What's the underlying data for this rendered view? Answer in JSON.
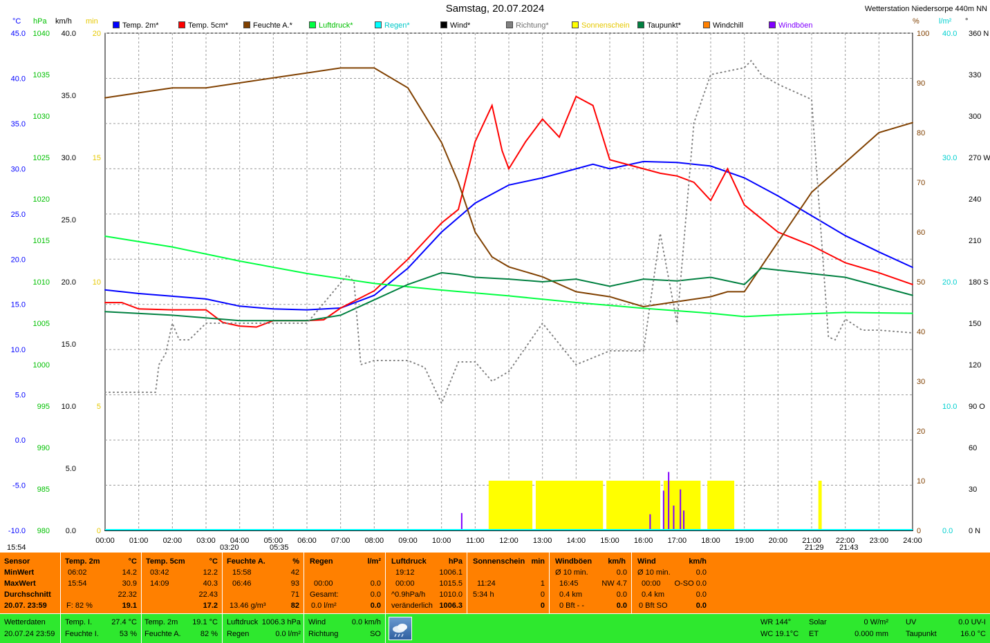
{
  "title": "Samstag, 20.07.2024",
  "station": "Wetterstation Niedersorpe 440m NN",
  "legend": [
    {
      "label": "Temp. 2m*",
      "color": "#0000ff"
    },
    {
      "label": "Temp. 5cm*",
      "color": "#ff0000"
    },
    {
      "label": "Feuchte A.*",
      "color": "#804000"
    },
    {
      "label": "Luftdruck*",
      "color": "#00ff40"
    },
    {
      "label": "Regen*",
      "color": "#00ffff"
    },
    {
      "label": "Wind*",
      "color": "#000000"
    },
    {
      "label": "Richtung*",
      "color": "#808080"
    },
    {
      "label": "Sonnenschein",
      "color": "#ffff00"
    },
    {
      "label": "Taupunkt*",
      "color": "#008040"
    },
    {
      "label": "Windchill",
      "color": "#ff8000"
    },
    {
      "label": "Windböen",
      "color": "#8000ff"
    }
  ],
  "units": {
    "c": "°C",
    "hpa": "hPa",
    "kmh": "km/h",
    "min": "min",
    "pct": "%",
    "lm2": "l/m²",
    "deg": "°"
  },
  "axes": {
    "temp_c": [
      "45.0",
      "40.0",
      "35.0",
      "30.0",
      "25.0",
      "20.0",
      "15.0",
      "10.0",
      "5.0",
      "0.0",
      "-5.0",
      "-10.0"
    ],
    "pressure_hpa": [
      "1040",
      "1035",
      "1030",
      "1025",
      "1020",
      "1015",
      "1010",
      "1005",
      "1000",
      "995",
      "990",
      "985",
      "980"
    ],
    "wind_kmh": [
      "40.0",
      "35.0",
      "30.0",
      "25.0",
      "20.0",
      "15.0",
      "10.0",
      "5.0",
      "0.0"
    ],
    "sun_min": [
      "20",
      "15",
      "10",
      "5",
      "0"
    ],
    "humidity_pct": [
      "100",
      "90",
      "80",
      "70",
      "60",
      "50",
      "40",
      "30",
      "20",
      "10",
      "0"
    ],
    "rain_lm2": [
      "40.0",
      "30.0",
      "20.0",
      "10.0",
      "0.0"
    ],
    "direction_deg": [
      "360 N",
      "330",
      "300",
      "270 W",
      "240",
      "210",
      "180 S",
      "150",
      "120",
      "90 O",
      "60",
      "30",
      "0 N"
    ],
    "x_ticks": [
      "00:00",
      "01:00",
      "02:00",
      "03:00",
      "04:00",
      "05:00",
      "06:00",
      "07:00",
      "08:00",
      "09:00",
      "10:00",
      "11:00",
      "12:00",
      "13:00",
      "14:00",
      "15:00",
      "16:00",
      "17:00",
      "18:00",
      "19:00",
      "20:00",
      "21:00",
      "22:00",
      "23:00",
      "24:00"
    ]
  },
  "sun_events": [
    {
      "label": "15:54"
    },
    {
      "label": "03:20"
    },
    {
      "label": "05:35"
    },
    {
      "label": "21:29"
    },
    {
      "label": "21:43"
    }
  ],
  "chart_data": {
    "type": "line",
    "x_range": [
      0,
      24
    ],
    "series": [
      {
        "name": "Temp. 2m*",
        "unit": "°C",
        "color": "#0000ff",
        "points": [
          [
            0,
            16.6
          ],
          [
            1,
            16.2
          ],
          [
            2,
            15.9
          ],
          [
            3,
            15.6
          ],
          [
            4,
            14.8
          ],
          [
            5,
            14.5
          ],
          [
            6,
            14.4
          ],
          [
            7,
            14.6
          ],
          [
            8,
            16.0
          ],
          [
            9,
            19.0
          ],
          [
            10,
            23.0
          ],
          [
            11,
            26.2
          ],
          [
            12,
            28.2
          ],
          [
            13,
            29.0
          ],
          [
            14,
            30.0
          ],
          [
            14.5,
            30.5
          ],
          [
            15,
            30.0
          ],
          [
            16,
            30.8
          ],
          [
            17,
            30.7
          ],
          [
            18,
            30.3
          ],
          [
            19,
            29.0
          ],
          [
            20,
            27.0
          ],
          [
            21,
            24.8
          ],
          [
            22,
            22.6
          ],
          [
            23,
            20.8
          ],
          [
            24,
            19.1
          ]
        ]
      },
      {
        "name": "Temp. 5cm*",
        "unit": "°C",
        "color": "#ff0000",
        "points": [
          [
            0,
            15.2
          ],
          [
            0.5,
            15.2
          ],
          [
            1,
            14.5
          ],
          [
            2,
            14.4
          ],
          [
            3,
            14.4
          ],
          [
            3.5,
            13.0
          ],
          [
            4,
            12.6
          ],
          [
            4.5,
            12.5
          ],
          [
            5,
            13.2
          ],
          [
            6,
            13.2
          ],
          [
            6.5,
            13.3
          ],
          [
            7,
            14.6
          ],
          [
            8,
            16.5
          ],
          [
            9,
            20.0
          ],
          [
            10,
            24.0
          ],
          [
            10.5,
            25.5
          ],
          [
            11,
            33.0
          ],
          [
            11.5,
            37.0
          ],
          [
            11.8,
            32.0
          ],
          [
            12,
            30.0
          ],
          [
            12.5,
            33.0
          ],
          [
            13,
            35.5
          ],
          [
            13.5,
            33.5
          ],
          [
            14,
            38.0
          ],
          [
            14.5,
            37.0
          ],
          [
            15,
            31.0
          ],
          [
            16,
            30.0
          ],
          [
            16.5,
            29.5
          ],
          [
            17,
            29.2
          ],
          [
            17.5,
            28.5
          ],
          [
            18,
            26.5
          ],
          [
            18.5,
            30.0
          ],
          [
            19,
            26.0
          ],
          [
            20,
            23.0
          ],
          [
            21,
            21.5
          ],
          [
            22,
            19.6
          ],
          [
            23,
            18.5
          ],
          [
            24,
            17.2
          ]
        ]
      },
      {
        "name": "Feuchte A.*",
        "unit": "%",
        "color": "#804000",
        "points": [
          [
            0,
            87
          ],
          [
            1,
            88
          ],
          [
            2,
            89
          ],
          [
            3,
            89
          ],
          [
            4,
            90
          ],
          [
            5,
            91
          ],
          [
            6,
            92
          ],
          [
            7,
            93
          ],
          [
            8,
            93
          ],
          [
            9,
            89
          ],
          [
            10,
            78
          ],
          [
            10.5,
            70
          ],
          [
            11,
            60
          ],
          [
            11.5,
            55
          ],
          [
            12,
            53
          ],
          [
            13,
            51
          ],
          [
            14,
            48
          ],
          [
            15,
            47
          ],
          [
            16,
            45
          ],
          [
            17,
            46
          ],
          [
            18,
            47
          ],
          [
            18.5,
            48
          ],
          [
            19,
            48
          ],
          [
            20,
            58
          ],
          [
            21,
            68
          ],
          [
            22,
            74
          ],
          [
            23,
            80
          ],
          [
            24,
            82
          ]
        ]
      },
      {
        "name": "Luftdruck*",
        "unit": "hPa",
        "color": "#00ff40",
        "points": [
          [
            0,
            1015.5
          ],
          [
            2,
            1014.2
          ],
          [
            4,
            1012.5
          ],
          [
            6,
            1011.0
          ],
          [
            8,
            1009.8
          ],
          [
            10,
            1009.0
          ],
          [
            12,
            1008.3
          ],
          [
            14,
            1007.5
          ],
          [
            16,
            1006.8
          ],
          [
            18,
            1006.2
          ],
          [
            19,
            1005.8
          ],
          [
            20,
            1006.0
          ],
          [
            22,
            1006.3
          ],
          [
            24,
            1006.2
          ]
        ]
      },
      {
        "name": "Taupunkt*",
        "unit": "°C",
        "color": "#008040",
        "points": [
          [
            0,
            14.2
          ],
          [
            2,
            13.8
          ],
          [
            4,
            13.2
          ],
          [
            6,
            13.2
          ],
          [
            7,
            13.8
          ],
          [
            8,
            15.5
          ],
          [
            9,
            17.2
          ],
          [
            10,
            18.5
          ],
          [
            10.5,
            18.3
          ],
          [
            11,
            18.0
          ],
          [
            12,
            17.8
          ],
          [
            13,
            17.5
          ],
          [
            14,
            17.8
          ],
          [
            15,
            17.0
          ],
          [
            16,
            17.8
          ],
          [
            17,
            17.6
          ],
          [
            18,
            18.0
          ],
          [
            19,
            17.2
          ],
          [
            19.5,
            19.0
          ],
          [
            20,
            18.8
          ],
          [
            22,
            18.0
          ],
          [
            24,
            16.0
          ]
        ]
      },
      {
        "name": "Wind*",
        "unit": "km/h",
        "color": "#000000",
        "points": [
          [
            0,
            0.0
          ],
          [
            24,
            0.0
          ]
        ]
      },
      {
        "name": "Richtung*",
        "unit": "°",
        "color": "#808080",
        "points": [
          [
            0,
            100
          ],
          [
            1.5,
            100
          ],
          [
            1.6,
            120
          ],
          [
            1.8,
            128
          ],
          [
            2,
            150
          ],
          [
            2.2,
            138
          ],
          [
            2.5,
            138
          ],
          [
            3,
            150
          ],
          [
            6,
            150
          ],
          [
            7.2,
            185
          ],
          [
            7.4,
            180
          ],
          [
            7.6,
            120
          ],
          [
            8,
            123
          ],
          [
            9,
            123
          ],
          [
            9.5,
            118
          ],
          [
            10,
            92
          ],
          [
            10.5,
            122
          ],
          [
            11,
            122
          ],
          [
            11.5,
            108
          ],
          [
            12,
            115
          ],
          [
            13,
            150
          ],
          [
            14,
            120
          ],
          [
            15,
            130
          ],
          [
            16,
            130
          ],
          [
            16.5,
            215
          ],
          [
            17,
            150
          ],
          [
            17.5,
            295
          ],
          [
            18,
            330
          ],
          [
            19,
            335
          ],
          [
            19.2,
            340
          ],
          [
            19.5,
            330
          ],
          [
            20,
            323
          ],
          [
            21,
            312
          ],
          [
            21.5,
            140
          ],
          [
            21.7,
            138
          ],
          [
            22,
            153
          ],
          [
            22.5,
            145
          ],
          [
            23,
            145
          ],
          [
            24,
            143
          ]
        ]
      }
    ],
    "bars": [
      {
        "name": "Sonnenschein",
        "unit": "min",
        "color": "#ffff00",
        "intervals": [
          [
            11.4,
            12.7
          ],
          [
            12.8,
            14.8
          ],
          [
            14.9,
            16.5
          ],
          [
            16.6,
            17.7
          ],
          [
            17.9,
            18.7
          ],
          [
            21.2,
            21.3
          ]
        ],
        "value": 1.0
      },
      {
        "name": "Windböen",
        "unit": "km/h",
        "color": "#8000ff",
        "spikes": [
          [
            10.6,
            1.4
          ],
          [
            16.2,
            1.3
          ],
          [
            16.6,
            3.2
          ],
          [
            16.75,
            4.7
          ],
          [
            16.9,
            2.0
          ],
          [
            17.1,
            3.3
          ],
          [
            17.2,
            1.6
          ]
        ]
      }
    ],
    "y_axes": {
      "temp_c": [
        -10,
        45
      ],
      "pressure_hpa": [
        980,
        1040
      ],
      "wind_kmh": [
        0,
        40
      ],
      "sun_min": [
        0,
        20
      ],
      "humidity_pct": [
        0,
        100
      ],
      "rain_lm2": [
        0,
        40
      ],
      "direction_deg": [
        0,
        360
      ]
    }
  },
  "summary": {
    "sensor": {
      "header": "Sensor",
      "rows": [
        "MinWert",
        "MaxWert",
        "Durchschnitt",
        "20.07. 23:59"
      ]
    },
    "temp2m": {
      "header": "Temp. 2m",
      "unit": "°C",
      "min_time": "06:02",
      "min_val": "14.2",
      "max_time": "15:54",
      "max_val": "30.9",
      "avg": "22.32",
      "cur_note": "F: 82 %",
      "cur": "19.1"
    },
    "temp5cm": {
      "header": "Temp. 5cm",
      "unit": "°C",
      "min_time": "03:42",
      "min_val": "12.2",
      "max_time": "14:09",
      "max_val": "40.3",
      "avg": "22.43",
      "cur": "17.2"
    },
    "feuchte": {
      "header": "Feuchte A.",
      "unit": "%",
      "min_time": "15:58",
      "min_val": "42",
      "max_time": "06:46",
      "max_val": "93",
      "avg": "71",
      "cur_note": "13.46 g/m³",
      "cur": "82"
    },
    "regen": {
      "header": "Regen",
      "unit": "l/m²",
      "r2_time": "00:00",
      "r2_val": "0.0",
      "r3_label": "Gesamt:",
      "r3_val": "0.0",
      "cur_note": "0.0 l/m²",
      "cur": "0.0"
    },
    "luftdruck": {
      "header": "Luftdruck",
      "unit": "hPa",
      "min_time": "19:12",
      "min_val": "1006.1",
      "max_time": "00:00",
      "max_val": "1015.5",
      "trend_label": "^0.9hPa/h",
      "trend_val": "1010.0",
      "cur_note": "veränderlich",
      "cur": "1006.3"
    },
    "sonne": {
      "header": "Sonnenschein",
      "unit": "min",
      "r1_time": "11:24",
      "r1_val": "1",
      "r2_label": "5:34 h",
      "r2_val": "0",
      "cur": "0"
    },
    "windboen": {
      "header": "Windböen",
      "unit": "km/h",
      "r1_label": "Ø 10 min.",
      "r1_val": "0.0",
      "r2_time": "16:45",
      "r2_val": "NW 4.7",
      "r3_label": "0.4 km",
      "r3_val": "0.0",
      "cur_note": "0 Bft - -",
      "cur": "0.0"
    },
    "wind": {
      "header": "Wind",
      "unit": "km/h",
      "r1_label": "Ø 10 min.",
      "r1_val": "0.0",
      "r2_time": "00:00",
      "r2_val": "O-SO 0.0",
      "r3_label": "0.4 km",
      "r3_val": "0.0",
      "cur_note": "0 Bft SO",
      "cur": "0.0"
    }
  },
  "bottom": {
    "label1": "Wetterdaten",
    "label2": "20.07.24 23:59",
    "temp_i_l": "Temp. I.",
    "temp_i_v": "27.4 °C",
    "feuchte_i_l": "Feuchte I.",
    "feuchte_i_v": "53 %",
    "temp2m_l": "Temp. 2m",
    "temp2m_v": "19.1 °C",
    "feuchte_a_l": "Feuchte A.",
    "feuchte_a_v": "82 %",
    "luftdruck_l": "Luftdruck",
    "luftdruck_v": "1006.3 hPa",
    "regen_l": "Regen",
    "regen_v": "0.0 l/m²",
    "wind_l": "Wind",
    "wind_v": "0.0 km/h",
    "richtung_l": "Richtung",
    "richtung_v": "SO",
    "wr": "WR 144°",
    "wc": "WC 19.1°C",
    "solar_l": "Solar",
    "solar_v": "0 W/m²",
    "et_l": "ET",
    "et_v": "0.000 mm",
    "uv_l": "UV",
    "uv_v": "0.0 UV-I",
    "tau_l": "Taupunkt",
    "tau_v": "16.0 °C"
  }
}
